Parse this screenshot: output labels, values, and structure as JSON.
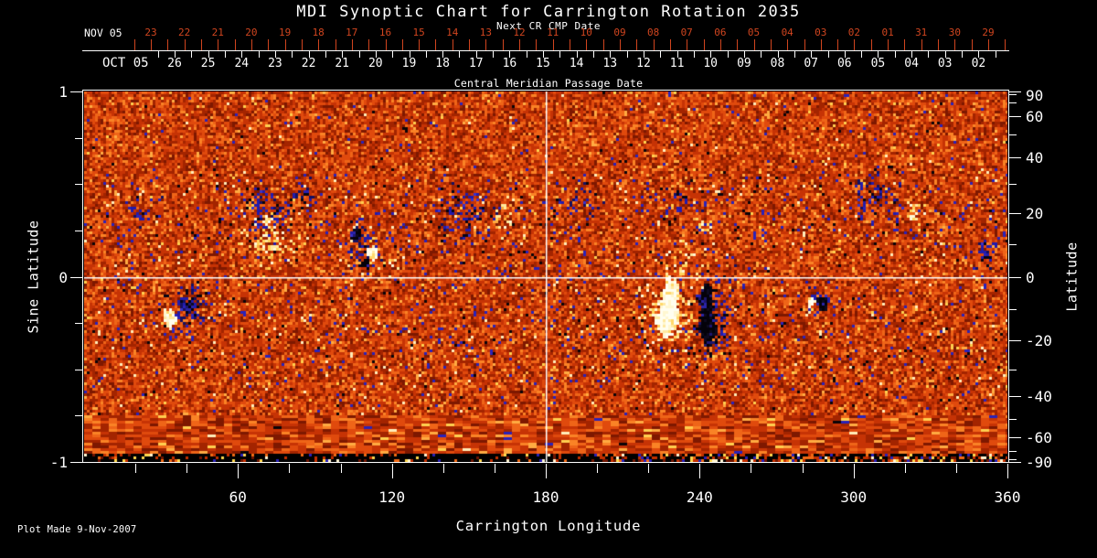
{
  "title": "MDI Synoptic Chart for Carrington Rotation 2035",
  "footer": "Plot Made  9-Nov-2007",
  "colors": {
    "background": "#000000",
    "foreground": "#ffffff",
    "next_cr_accent": "#d1451f"
  },
  "next_cr_axis": {
    "label": "Next CR CMP Date",
    "month_label": "NOV 05",
    "days": [
      "23",
      "22",
      "21",
      "20",
      "19",
      "18",
      "17",
      "16",
      "15",
      "14",
      "13",
      "12",
      "11",
      "10",
      "09",
      "08",
      "07",
      "06",
      "05",
      "04",
      "03",
      "02",
      "01",
      "31",
      "30",
      "29"
    ]
  },
  "cmp_axis": {
    "title": "Central Meridian Passage Date",
    "month_label": "OCT 05",
    "days": [
      "26",
      "25",
      "24",
      "23",
      "22",
      "21",
      "20",
      "19",
      "18",
      "17",
      "16",
      "15",
      "14",
      "13",
      "12",
      "11",
      "10",
      "09",
      "08",
      "07",
      "06",
      "05",
      "04",
      "03",
      "02"
    ]
  },
  "chart_data": {
    "type": "heatmap",
    "title": "MDI Synoptic Chart for Carrington Rotation 2035",
    "xlabel": "Carrington Longitude",
    "ylabel_left": "Sine Latitude",
    "ylabel_right": "Latitude",
    "x_range": [
      0,
      360
    ],
    "y_range_sine": [
      -1,
      1
    ],
    "x_major_ticks": [
      60,
      120,
      180,
      240,
      300,
      360
    ],
    "x_minor_step": 20,
    "left_major_tick_values": [
      1,
      0,
      -1
    ],
    "left_major_tick_labels": [
      "1",
      "0",
      "-1"
    ],
    "left_minor_tick_values": [
      0.75,
      0.5,
      0.25,
      -0.25,
      -0.5,
      -0.75
    ],
    "right_major_tick_values": [
      90,
      60,
      40,
      20,
      0,
      -20,
      -40,
      -60,
      -90
    ],
    "right_major_tick_labels": [
      "90",
      "60",
      "40",
      "20",
      "0",
      "-20",
      "-40",
      "-60",
      "-90"
    ],
    "right_minor_tick_values": [
      80,
      70,
      50,
      30,
      10,
      -10,
      -30,
      -50,
      -70,
      -80
    ],
    "grid": false,
    "legend": false,
    "crosshair": {
      "longitude": 180,
      "sine_latitude": 0
    },
    "palette": {
      "base": [
        [
          "#7e1800",
          0.12
        ],
        [
          "#a32400",
          0.2
        ],
        [
          "#c63305",
          0.24
        ],
        [
          "#e04a0d",
          0.2
        ],
        [
          "#ef6518",
          0.12
        ],
        [
          "#fa8326",
          0.07
        ],
        [
          "#ffab42",
          0.03
        ]
      ],
      "speckles": {
        "blue": "#2a22b8",
        "black": "#0a0408",
        "cream": "#ffedba",
        "yellow": "#ffcf4f"
      },
      "neg_spot": [
        [
          "#04020a",
          0.5
        ],
        [
          "#0d0a20",
          0.25
        ],
        [
          "#1d1670",
          0.15
        ],
        [
          "#2b24a8",
          0.1
        ]
      ],
      "pos_spot": [
        [
          "#fffef0",
          0.45
        ],
        [
          "#fff7d0",
          0.3
        ],
        [
          "#ffe9a0",
          0.15
        ],
        [
          "#ffd869",
          0.1
        ]
      ],
      "neg_cloud": [
        [
          "#221bab",
          0.5
        ],
        [
          "#151060",
          0.25
        ],
        [
          "#060415",
          0.15
        ],
        [
          "#3a32cc",
          0.1
        ]
      ],
      "pos_cloud": [
        [
          "#ffd35b",
          0.4
        ],
        [
          "#ffe89c",
          0.3
        ],
        [
          "#fff6d4",
          0.2
        ],
        [
          "#f9a93a",
          0.1
        ]
      ],
      "bottom_band": [
        [
          "#000000",
          0.0
        ],
        [
          "#c33000",
          0.28
        ],
        [
          "#701500",
          0.2
        ],
        [
          "#ffd84f",
          0.16
        ],
        [
          "#2a22b8",
          0.12
        ],
        [
          "#fff3d0",
          0.08
        ],
        [
          "#f06a15",
          0.16
        ]
      ]
    },
    "active_regions": [
      {
        "kind": "neg_cloud",
        "lon": 20,
        "slat": 0.35,
        "rlon": 6,
        "rslat": 0.1,
        "density": 0.3
      },
      {
        "kind": "neg_cloud",
        "lon": 41,
        "slat": -0.15,
        "rlon": 9,
        "rslat": 0.13,
        "density": 0.45
      },
      {
        "kind": "pos_spot",
        "lon": 33.5,
        "slat": -0.22,
        "rlon": 3.2,
        "rslat": 0.06
      },
      {
        "kind": "neg_spot",
        "lon": 41,
        "slat": -0.16,
        "rlon": 2.0,
        "rslat": 0.04
      },
      {
        "kind": "neg_cloud",
        "lon": 69.5,
        "slat": 0.35,
        "rlon": 9,
        "rslat": 0.13,
        "density": 0.55
      },
      {
        "kind": "neg_cloud",
        "lon": 85,
        "slat": 0.43,
        "rlon": 6,
        "rslat": 0.1,
        "density": 0.4
      },
      {
        "kind": "pos_cloud",
        "lon": 72,
        "slat": 0.18,
        "rlon": 11,
        "rslat": 0.11,
        "density": 0.5
      },
      {
        "kind": "pos_spot",
        "lon": 71.5,
        "slat": 0.3,
        "rlon": 1.6,
        "rslat": 0.028
      },
      {
        "kind": "neg_cloud",
        "lon": 108,
        "slat": 0.17,
        "rlon": 7,
        "rslat": 0.13,
        "density": 0.5
      },
      {
        "kind": "neg_spot",
        "lon": 106.5,
        "slat": 0.23,
        "rlon": 2.2,
        "rslat": 0.042
      },
      {
        "kind": "pos_spot",
        "lon": 112.5,
        "slat": 0.125,
        "rlon": 2.3,
        "rslat": 0.04
      },
      {
        "kind": "neg_spot",
        "lon": 110,
        "slat": 0.07,
        "rlon": 1.7,
        "rslat": 0.03
      },
      {
        "kind": "pos_cloud",
        "lon": 118,
        "slat": 0.06,
        "rlon": 8,
        "rslat": 0.07,
        "density": 0.3
      },
      {
        "kind": "neg_cloud",
        "lon": 149,
        "slat": 0.33,
        "rlon": 11,
        "rslat": 0.15,
        "density": 0.45
      },
      {
        "kind": "pos_cloud",
        "lon": 163,
        "slat": 0.31,
        "rlon": 5,
        "rslat": 0.1,
        "density": 0.35
      },
      {
        "kind": "neg_cloud",
        "lon": 193,
        "slat": 0.43,
        "rlon": 9,
        "rslat": 0.1,
        "density": 0.35
      },
      {
        "kind": "neg_cloud",
        "lon": 232,
        "slat": 0.43,
        "rlon": 9,
        "rslat": 0.09,
        "density": 0.3
      },
      {
        "kind": "pos_cloud",
        "lon": 242,
        "slat": 0.28,
        "rlon": 4,
        "rslat": 0.08,
        "density": 0.3
      },
      {
        "kind": "pos_cloud",
        "lon": 228,
        "slat": -0.18,
        "rlon": 12,
        "rslat": 0.26,
        "density": 0.5
      },
      {
        "kind": "neg_cloud",
        "lon": 245,
        "slat": -0.2,
        "rlon": 8,
        "rslat": 0.22,
        "density": 0.45
      },
      {
        "kind": "pos_cloud",
        "lon": 234,
        "slat": 0.08,
        "rlon": 6,
        "rslat": 0.1,
        "density": 0.35
      },
      {
        "kind": "pos_spot",
        "lon": 229,
        "slat": -0.1,
        "rlon": 4.2,
        "rslat": 0.1
      },
      {
        "kind": "pos_spot",
        "lon": 227.5,
        "slat": -0.22,
        "rlon": 5.0,
        "rslat": 0.12
      },
      {
        "kind": "neg_spot",
        "lon": 242.5,
        "slat": -0.13,
        "rlon": 3.4,
        "rslat": 0.1
      },
      {
        "kind": "neg_spot",
        "lon": 243.5,
        "slat": -0.28,
        "rlon": 4.2,
        "rslat": 0.12
      },
      {
        "kind": "neg_cloud",
        "lon": 287,
        "slat": -0.13,
        "rlon": 5,
        "rslat": 0.09,
        "density": 0.35
      },
      {
        "kind": "pos_spot",
        "lon": 283.5,
        "slat": -0.135,
        "rlon": 1.7,
        "rslat": 0.03
      },
      {
        "kind": "neg_spot",
        "lon": 288,
        "slat": -0.15,
        "rlon": 2.4,
        "rslat": 0.05
      },
      {
        "kind": "neg_cloud",
        "lon": 309,
        "slat": 0.43,
        "rlon": 10,
        "rslat": 0.12,
        "density": 0.45
      },
      {
        "kind": "pos_cloud",
        "lon": 324,
        "slat": 0.33,
        "rlon": 4,
        "rslat": 0.1,
        "density": 0.4
      },
      {
        "kind": "neg_cloud",
        "lon": 352,
        "slat": 0.1,
        "rlon": 4,
        "rslat": 0.12,
        "density": 0.35
      }
    ]
  }
}
